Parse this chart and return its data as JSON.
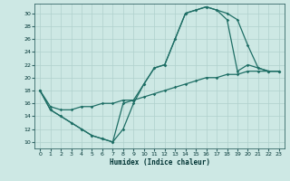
{
  "xlabel": "Humidex (Indice chaleur)",
  "xlim": [
    -0.5,
    23.5
  ],
  "ylim": [
    9,
    31.5
  ],
  "yticks": [
    10,
    12,
    14,
    16,
    18,
    20,
    22,
    24,
    26,
    28,
    30
  ],
  "xticks": [
    0,
    1,
    2,
    3,
    4,
    5,
    6,
    7,
    8,
    9,
    10,
    11,
    12,
    13,
    14,
    15,
    16,
    17,
    18,
    19,
    20,
    21,
    22,
    23
  ],
  "bg_color": "#cde8e4",
  "grid_color": "#b0d0cc",
  "line_color": "#1e6e65",
  "curve1_x": [
    0,
    1,
    2,
    3,
    4,
    5,
    6,
    7,
    8,
    9,
    10,
    11,
    12,
    13,
    14,
    15,
    16,
    17,
    18,
    19,
    20,
    21,
    22,
    23
  ],
  "curve1_y": [
    18,
    15,
    14,
    13,
    12,
    11,
    10.5,
    10,
    16,
    16.5,
    19,
    21.5,
    22,
    26,
    30,
    30.5,
    31,
    30.5,
    30,
    29,
    25,
    21.5,
    21,
    21
  ],
  "curve2_x": [
    0,
    1,
    2,
    3,
    4,
    5,
    6,
    7,
    8,
    9,
    10,
    11,
    12,
    13,
    14,
    15,
    16,
    17,
    18,
    19,
    20,
    21,
    22,
    23
  ],
  "curve2_y": [
    18,
    15,
    14,
    13,
    12,
    11,
    10.5,
    10,
    12,
    16,
    19,
    21.5,
    22,
    26,
    30,
    30.5,
    31,
    30.5,
    29,
    21,
    22,
    21.5,
    21,
    21
  ],
  "curve3_x": [
    0,
    1,
    2,
    3,
    4,
    5,
    6,
    7,
    8,
    9,
    10,
    11,
    12,
    13,
    14,
    15,
    16,
    17,
    18,
    19,
    20,
    21,
    22,
    23
  ],
  "curve3_y": [
    18,
    15.5,
    15,
    15,
    15.5,
    15.5,
    16,
    16,
    16.5,
    16.5,
    17,
    17.5,
    18,
    18.5,
    19,
    19.5,
    20,
    20,
    20.5,
    20.5,
    21,
    21,
    21,
    21
  ]
}
